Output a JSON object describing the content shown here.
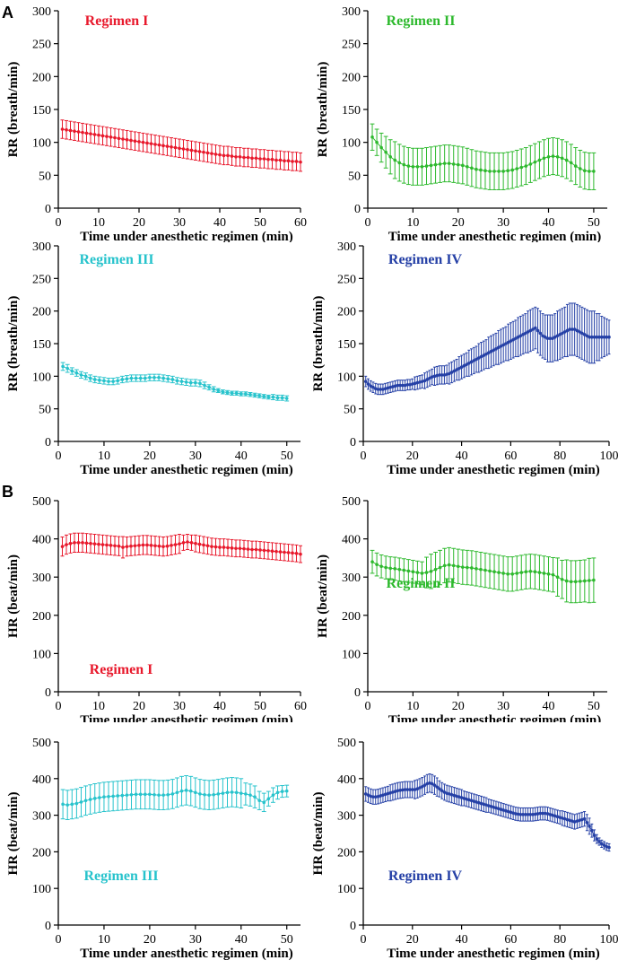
{
  "panel_labels": {
    "a": "A",
    "b": "B"
  },
  "chart_data": [
    {
      "type": "line",
      "panel": "A",
      "title": "Regimen I",
      "color": "#e8192c",
      "xlabel": "Time under anesthetic regimen (min)",
      "ylabel": "RR (breath/min)",
      "xlim": [
        0,
        60
      ],
      "ylim": [
        0,
        300
      ],
      "xticks": [
        0,
        10,
        20,
        30,
        40,
        50,
        60
      ],
      "yticks": [
        0,
        50,
        100,
        150,
        200,
        250,
        300
      ],
      "x_start": 1,
      "x_step": 1,
      "values": [
        120,
        119,
        118,
        117,
        116,
        115,
        114,
        113,
        112,
        111,
        110,
        109,
        108,
        107,
        106,
        105,
        104,
        103,
        102,
        101,
        100,
        99,
        98,
        97,
        96,
        95,
        94,
        93,
        92,
        91,
        90,
        89,
        88,
        87,
        86,
        85,
        84,
        83,
        82,
        81,
        80,
        80,
        79,
        78,
        78,
        77,
        77,
        76,
        76,
        75,
        75,
        74,
        74,
        73,
        73,
        72,
        72,
        71,
        71,
        70
      ],
      "err": [
        14,
        14,
        14,
        14,
        14,
        14,
        14,
        14,
        14,
        14,
        14,
        14,
        14,
        14,
        14,
        14,
        14,
        14,
        14,
        14,
        14,
        14,
        14,
        14,
        14,
        14,
        14,
        14,
        14,
        14,
        14,
        14,
        14,
        14,
        14,
        14,
        14,
        14,
        14,
        14,
        14,
        14,
        14,
        14,
        14,
        14,
        14,
        14,
        14,
        14,
        14,
        14,
        14,
        14,
        14,
        14,
        14,
        14,
        14,
        14
      ]
    },
    {
      "type": "line",
      "panel": "A",
      "title": "Regimen II",
      "color": "#2db92d",
      "xlabel": "Time under anesthetic regimen (min)",
      "ylabel": "RR (breath/min)",
      "xlim": [
        0,
        53
      ],
      "ylim": [
        0,
        300
      ],
      "xticks": [
        0,
        10,
        20,
        30,
        40,
        50
      ],
      "yticks": [
        0,
        50,
        100,
        150,
        200,
        250,
        300
      ],
      "x_start": 1,
      "x_step": 1,
      "values": [
        108,
        100,
        92,
        85,
        78,
        73,
        69,
        66,
        64,
        63,
        63,
        63,
        64,
        65,
        66,
        67,
        68,
        68,
        67,
        66,
        65,
        63,
        61,
        59,
        58,
        57,
        56,
        56,
        56,
        56,
        57,
        58,
        60,
        62,
        64,
        67,
        70,
        73,
        76,
        78,
        79,
        78,
        76,
        73,
        69,
        64,
        60,
        57,
        56,
        56
      ],
      "err": [
        20,
        20,
        22,
        24,
        26,
        28,
        28,
        28,
        28,
        28,
        28,
        28,
        28,
        28,
        28,
        28,
        28,
        28,
        28,
        28,
        28,
        28,
        28,
        28,
        28,
        28,
        28,
        28,
        28,
        28,
        28,
        28,
        28,
        28,
        28,
        28,
        28,
        28,
        28,
        28,
        28,
        28,
        28,
        28,
        28,
        28,
        28,
        28,
        28,
        28
      ]
    },
    {
      "type": "line",
      "panel": "A",
      "title": "Regimen III",
      "color": "#27c3cc",
      "xlabel": "Time under anesthetic regimen (min)",
      "ylabel": "RR (breath/min)",
      "xlim": [
        0,
        53
      ],
      "ylim": [
        0,
        300
      ],
      "xticks": [
        0,
        10,
        20,
        30,
        40,
        50
      ],
      "yticks": [
        0,
        50,
        100,
        150,
        200,
        250,
        300
      ],
      "x_start": 1,
      "x_step": 1,
      "values": [
        115,
        112,
        108,
        105,
        102,
        100,
        97,
        95,
        94,
        93,
        92,
        92,
        93,
        95,
        96,
        97,
        97,
        97,
        97,
        98,
        98,
        98,
        97,
        96,
        95,
        93,
        92,
        91,
        90,
        90,
        89,
        86,
        83,
        80,
        78,
        76,
        75,
        74,
        74,
        73,
        73,
        72,
        71,
        70,
        69,
        68,
        68,
        67,
        67,
        66
      ],
      "err": [
        6,
        6,
        5,
        5,
        5,
        5,
        5,
        5,
        5,
        5,
        5,
        5,
        5,
        5,
        5,
        5,
        5,
        5,
        5,
        5,
        5,
        5,
        5,
        5,
        5,
        5,
        5,
        5,
        5,
        5,
        5,
        5,
        4,
        4,
        3,
        3,
        3,
        3,
        3,
        3,
        3,
        3,
        3,
        3,
        3,
        3,
        4,
        4,
        4,
        4
      ]
    },
    {
      "type": "line",
      "panel": "A",
      "title": "Regimen IV",
      "color": "#2540a6",
      "xlabel": "Time under anesthetic regimen (min)",
      "ylabel": "RR (breath/min)",
      "xlim": [
        0,
        100
      ],
      "ylim": [
        0,
        300
      ],
      "xticks": [
        0,
        20,
        40,
        60,
        80,
        100
      ],
      "yticks": [
        0,
        50,
        100,
        150,
        200,
        250,
        300
      ],
      "x_start": 1,
      "x_step": 1,
      "values": [
        92,
        88,
        85,
        83,
        81,
        80,
        80,
        80,
        81,
        82,
        83,
        84,
        85,
        86,
        86,
        86,
        86,
        87,
        87,
        88,
        89,
        90,
        91,
        92,
        93,
        95,
        97,
        99,
        100,
        101,
        102,
        102,
        102,
        103,
        104,
        106,
        108,
        110,
        112,
        114,
        116,
        118,
        120,
        122,
        124,
        126,
        128,
        130,
        132,
        134,
        136,
        138,
        140,
        142,
        144,
        146,
        148,
        150,
        152,
        154,
        156,
        158,
        160,
        162,
        164,
        166,
        168,
        170,
        172,
        174,
        170,
        166,
        162,
        160,
        158,
        158,
        158,
        160,
        162,
        164,
        166,
        168,
        170,
        172,
        172,
        172,
        170,
        168,
        166,
        164,
        162,
        160,
        160,
        160,
        160,
        160,
        160,
        160,
        160,
        160
      ],
      "err": [
        8,
        8,
        8,
        8,
        8,
        8,
        8,
        8,
        8,
        8,
        8,
        8,
        8,
        8,
        8,
        8,
        8,
        8,
        8,
        8,
        10,
        10,
        10,
        10,
        12,
        12,
        12,
        12,
        14,
        14,
        14,
        14,
        14,
        14,
        16,
        16,
        16,
        16,
        18,
        18,
        18,
        18,
        20,
        20,
        20,
        20,
        22,
        22,
        22,
        22,
        24,
        24,
        24,
        24,
        26,
        26,
        26,
        26,
        28,
        28,
        28,
        28,
        30,
        30,
        30,
        30,
        32,
        32,
        32,
        32,
        34,
        34,
        34,
        34,
        36,
        36,
        36,
        36,
        38,
        38,
        38,
        38,
        40,
        40,
        40,
        40,
        40,
        40,
        40,
        40,
        40,
        40,
        40,
        40,
        36,
        36,
        32,
        30,
        28,
        26
      ]
    },
    {
      "type": "line",
      "panel": "B",
      "title": "Regimen I",
      "color": "#e8192c",
      "xlabel": "Time under anesthetic regimen (min)",
      "ylabel": "HR (beat/min)",
      "xlim": [
        0,
        60
      ],
      "ylim": [
        0,
        500
      ],
      "xticks": [
        0,
        10,
        20,
        30,
        40,
        50,
        60
      ],
      "yticks": [
        0,
        100,
        200,
        300,
        400,
        500
      ],
      "x_start": 1,
      "x_step": 1,
      "values": [
        380,
        385,
        388,
        390,
        390,
        390,
        389,
        388,
        387,
        386,
        385,
        384,
        383,
        382,
        381,
        378,
        380,
        381,
        382,
        383,
        384,
        384,
        383,
        382,
        381,
        380,
        381,
        383,
        385,
        387,
        390,
        392,
        390,
        388,
        386,
        384,
        382,
        380,
        379,
        378,
        378,
        377,
        376,
        375,
        375,
        374,
        373,
        372,
        372,
        371,
        370,
        369,
        368,
        367,
        366,
        365,
        364,
        363,
        362,
        360
      ],
      "err": [
        25,
        25,
        25,
        25,
        25,
        25,
        25,
        25,
        25,
        25,
        25,
        25,
        25,
        25,
        25,
        28,
        25,
        25,
        25,
        25,
        25,
        25,
        25,
        25,
        25,
        25,
        25,
        25,
        25,
        25,
        20,
        20,
        20,
        22,
        22,
        22,
        22,
        22,
        22,
        22,
        22,
        22,
        22,
        22,
        22,
        22,
        22,
        22,
        22,
        22,
        22,
        22,
        22,
        22,
        22,
        22,
        22,
        22,
        22,
        22
      ]
    },
    {
      "type": "line",
      "panel": "B",
      "title": "Regimen II",
      "color": "#2db92d",
      "xlabel": "Time under anesthetic regimen (min)",
      "ylabel": "HR (beat/min)",
      "xlim": [
        0,
        53
      ],
      "ylim": [
        0,
        500
      ],
      "xticks": [
        0,
        10,
        20,
        30,
        40,
        50
      ],
      "yticks": [
        0,
        100,
        200,
        300,
        400,
        500
      ],
      "x_start": 1,
      "x_step": 1,
      "values": [
        340,
        333,
        328,
        325,
        323,
        322,
        320,
        318,
        316,
        314,
        312,
        310,
        312,
        315,
        320,
        325,
        330,
        332,
        330,
        328,
        326,
        325,
        324,
        322,
        320,
        318,
        316,
        314,
        312,
        310,
        308,
        308,
        310,
        312,
        314,
        315,
        314,
        312,
        310,
        308,
        306,
        300,
        294,
        290,
        288,
        288,
        289,
        290,
        291,
        292
      ],
      "err": [
        30,
        30,
        30,
        30,
        30,
        30,
        30,
        30,
        30,
        30,
        30,
        30,
        40,
        45,
        45,
        45,
        45,
        45,
        45,
        45,
        45,
        45,
        45,
        45,
        45,
        45,
        45,
        45,
        45,
        45,
        45,
        45,
        45,
        45,
        45,
        45,
        45,
        45,
        45,
        45,
        45,
        50,
        50,
        55,
        55,
        55,
        55,
        55,
        58,
        58
      ]
    },
    {
      "type": "line",
      "panel": "B",
      "title": "Regimen III",
      "color": "#27c3cc",
      "xlabel": "Time under anesthetic regimen (min)",
      "ylabel": "HR (beat/min)",
      "xlim": [
        0,
        53
      ],
      "ylim": [
        0,
        500
      ],
      "xticks": [
        0,
        10,
        20,
        30,
        40,
        50
      ],
      "yticks": [
        0,
        100,
        200,
        300,
        400,
        500
      ],
      "x_start": 1,
      "x_step": 1,
      "values": [
        330,
        328,
        330,
        332,
        336,
        340,
        343,
        346,
        348,
        350,
        351,
        352,
        353,
        354,
        355,
        356,
        357,
        357,
        357,
        357,
        356,
        355,
        355,
        356,
        358,
        362,
        366,
        368,
        366,
        362,
        358,
        356,
        355,
        356,
        358,
        360,
        362,
        363,
        362,
        360,
        358,
        355,
        350,
        340,
        335,
        345,
        355,
        362,
        365,
        366
      ],
      "err": [
        40,
        40,
        40,
        40,
        40,
        40,
        40,
        40,
        40,
        40,
        40,
        40,
        40,
        40,
        40,
        40,
        40,
        40,
        40,
        40,
        40,
        40,
        40,
        40,
        40,
        40,
        40,
        40,
        40,
        40,
        40,
        40,
        40,
        40,
        40,
        40,
        40,
        40,
        40,
        40,
        30,
        30,
        30,
        25,
        25,
        20,
        20,
        18,
        16,
        16
      ]
    },
    {
      "type": "line",
      "panel": "B",
      "title": "Regimen IV",
      "color": "#2540a6",
      "xlabel": "Time under anesthetic regimen (min)",
      "ylabel": "HR (beat/min)",
      "xlim": [
        0,
        100
      ],
      "ylim": [
        0,
        500
      ],
      "xticks": [
        0,
        20,
        40,
        60,
        80,
        100
      ],
      "yticks": [
        0,
        100,
        200,
        300,
        400,
        500
      ],
      "x_start": 1,
      "x_step": 1,
      "values": [
        358,
        355,
        352,
        350,
        350,
        351,
        353,
        355,
        357,
        359,
        361,
        363,
        365,
        367,
        368,
        369,
        370,
        370,
        370,
        370,
        370,
        372,
        375,
        378,
        382,
        386,
        388,
        386,
        382,
        377,
        372,
        367,
        363,
        360,
        358,
        356,
        354,
        352,
        350,
        348,
        346,
        344,
        342,
        340,
        338,
        336,
        334,
        332,
        330,
        328,
        326,
        324,
        322,
        320,
        318,
        316,
        314,
        312,
        310,
        308,
        306,
        304,
        303,
        302,
        302,
        302,
        302,
        302,
        302,
        303,
        304,
        305,
        305,
        305,
        304,
        302,
        300,
        298,
        296,
        294,
        292,
        290,
        288,
        286,
        284,
        282,
        284,
        286,
        288,
        290,
        280,
        270,
        258,
        245,
        235,
        228,
        222,
        218,
        214,
        212
      ],
      "err": [
        20,
        20,
        20,
        20,
        20,
        20,
        20,
        20,
        20,
        20,
        22,
        22,
        22,
        22,
        22,
        22,
        22,
        22,
        22,
        22,
        25,
        25,
        25,
        25,
        25,
        25,
        25,
        25,
        25,
        25,
        22,
        22,
        22,
        22,
        22,
        22,
        22,
        22,
        22,
        22,
        20,
        20,
        20,
        20,
        20,
        20,
        20,
        20,
        20,
        20,
        18,
        18,
        18,
        18,
        18,
        18,
        18,
        18,
        18,
        18,
        18,
        18,
        18,
        18,
        18,
        18,
        18,
        18,
        18,
        18,
        18,
        18,
        18,
        18,
        18,
        18,
        18,
        18,
        18,
        18,
        20,
        20,
        20,
        20,
        20,
        20,
        20,
        20,
        20,
        20,
        22,
        22,
        18,
        15,
        12,
        10,
        10,
        10,
        10,
        10
      ]
    }
  ]
}
